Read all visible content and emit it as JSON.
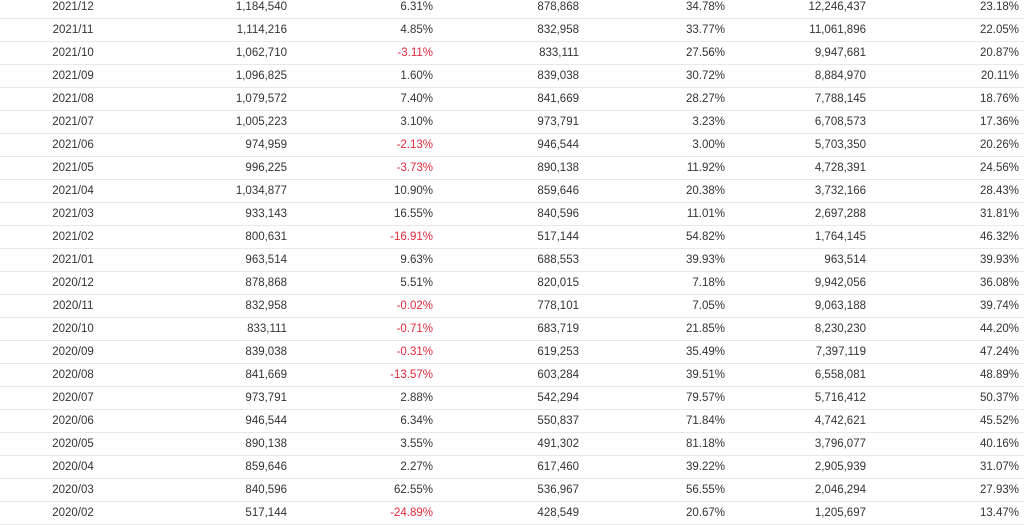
{
  "colors": {
    "text": "#333333",
    "negative": "#e0283c",
    "row_border": "#e8e8e8"
  },
  "rows": [
    [
      "2021/12",
      "1,184,540",
      "6.31%",
      "878,868",
      "34.78%",
      "12,246,437",
      "23.18%"
    ],
    [
      "2021/11",
      "1,114,216",
      "4.85%",
      "832,958",
      "33.77%",
      "11,061,896",
      "22.05%"
    ],
    [
      "2021/10",
      "1,062,710",
      "-3.11%",
      "833,111",
      "27.56%",
      "9,947,681",
      "20.87%"
    ],
    [
      "2021/09",
      "1,096,825",
      "1.60%",
      "839,038",
      "30.72%",
      "8,884,970",
      "20.11%"
    ],
    [
      "2021/08",
      "1,079,572",
      "7.40%",
      "841,669",
      "28.27%",
      "7,788,145",
      "18.76%"
    ],
    [
      "2021/07",
      "1,005,223",
      "3.10%",
      "973,791",
      "3.23%",
      "6,708,573",
      "17.36%"
    ],
    [
      "2021/06",
      "974,959",
      "-2.13%",
      "946,544",
      "3.00%",
      "5,703,350",
      "20.26%"
    ],
    [
      "2021/05",
      "996,225",
      "-3.73%",
      "890,138",
      "11.92%",
      "4,728,391",
      "24.56%"
    ],
    [
      "2021/04",
      "1,034,877",
      "10.90%",
      "859,646",
      "20.38%",
      "3,732,166",
      "28.43%"
    ],
    [
      "2021/03",
      "933,143",
      "16.55%",
      "840,596",
      "11.01%",
      "2,697,288",
      "31.81%"
    ],
    [
      "2021/02",
      "800,631",
      "-16.91%",
      "517,144",
      "54.82%",
      "1,764,145",
      "46.32%"
    ],
    [
      "2021/01",
      "963,514",
      "9.63%",
      "688,553",
      "39.93%",
      "963,514",
      "39.93%"
    ],
    [
      "2020/12",
      "878,868",
      "5.51%",
      "820,015",
      "7.18%",
      "9,942,056",
      "36.08%"
    ],
    [
      "2020/11",
      "832,958",
      "-0.02%",
      "778,101",
      "7.05%",
      "9,063,188",
      "39.74%"
    ],
    [
      "2020/10",
      "833,111",
      "-0.71%",
      "683,719",
      "21.85%",
      "8,230,230",
      "44.20%"
    ],
    [
      "2020/09",
      "839,038",
      "-0.31%",
      "619,253",
      "35.49%",
      "7,397,119",
      "47.24%"
    ],
    [
      "2020/08",
      "841,669",
      "-13.57%",
      "603,284",
      "39.51%",
      "6,558,081",
      "48.89%"
    ],
    [
      "2020/07",
      "973,791",
      "2.88%",
      "542,294",
      "79.57%",
      "5,716,412",
      "50.37%"
    ],
    [
      "2020/06",
      "946,544",
      "6.34%",
      "550,837",
      "71.84%",
      "4,742,621",
      "45.52%"
    ],
    [
      "2020/05",
      "890,138",
      "3.55%",
      "491,302",
      "81.18%",
      "3,796,077",
      "40.16%"
    ],
    [
      "2020/04",
      "859,646",
      "2.27%",
      "617,460",
      "39.22%",
      "2,905,939",
      "31.07%"
    ],
    [
      "2020/03",
      "840,596",
      "62.55%",
      "536,967",
      "56.55%",
      "2,046,294",
      "27.93%"
    ],
    [
      "2020/02",
      "517,144",
      "-24.89%",
      "428,549",
      "20.67%",
      "1,205,697",
      "13.47%"
    ]
  ]
}
